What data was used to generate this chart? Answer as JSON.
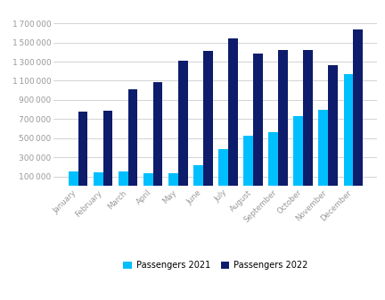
{
  "months": [
    "January",
    "February",
    "March",
    "April",
    "May",
    "June",
    "July",
    "August",
    "September",
    "October",
    "November",
    "December"
  ],
  "passengers_2021": [
    155000,
    145000,
    150000,
    130000,
    135000,
    215000,
    385000,
    525000,
    565000,
    730000,
    800000,
    1165000
  ],
  "passengers_2022": [
    775000,
    785000,
    1010000,
    1085000,
    1305000,
    1415000,
    1545000,
    1385000,
    1420000,
    1420000,
    1265000,
    1640000
  ],
  "color_2021": "#00BFFF",
  "color_2022": "#0D1C6B",
  "ylabel_ticks": [
    100000,
    300000,
    500000,
    700000,
    900000,
    1100000,
    1300000,
    1500000,
    1700000
  ],
  "ylim": [
    0,
    1850000
  ],
  "legend_2021": "Passengers 2021",
  "legend_2022": "Passengers 2022",
  "background_color": "#ffffff",
  "grid_color": "#cccccc"
}
